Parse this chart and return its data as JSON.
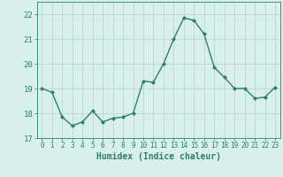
{
  "x": [
    0,
    1,
    2,
    3,
    4,
    5,
    6,
    7,
    8,
    9,
    10,
    11,
    12,
    13,
    14,
    15,
    16,
    17,
    18,
    19,
    20,
    21,
    22,
    23
  ],
  "y": [
    19.0,
    18.85,
    17.85,
    17.5,
    17.65,
    18.1,
    17.65,
    17.8,
    17.85,
    18.0,
    19.3,
    19.25,
    20.0,
    21.0,
    21.85,
    21.75,
    21.2,
    19.85,
    19.45,
    19.0,
    19.0,
    18.6,
    18.65,
    19.05
  ],
  "line_color": "#2e7d6e",
  "marker": "D",
  "markersize": 2.0,
  "linewidth": 1.0,
  "bg_color": "#d8f0ec",
  "grid_color": "#b8d8d0",
  "xlabel": "Humidex (Indice chaleur)",
  "xlabel_fontsize": 7,
  "xtick_fontsize": 5.5,
  "ytick_fontsize": 6.5,
  "ylim": [
    17.0,
    22.5
  ],
  "xlim": [
    -0.5,
    23.5
  ],
  "yticks": [
    17,
    18,
    19,
    20,
    21,
    22
  ],
  "title": ""
}
